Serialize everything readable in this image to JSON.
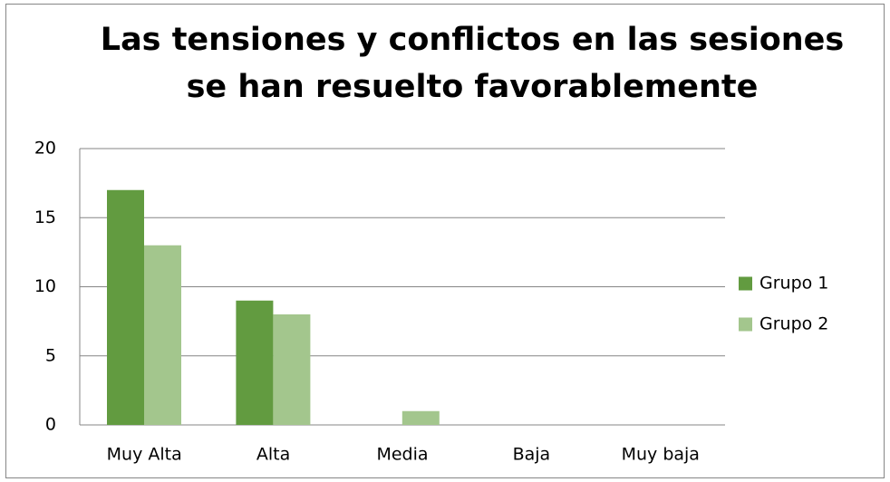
{
  "chart_data": {
    "type": "bar",
    "title": [
      "Las tensiones y conflictos en las sesiones",
      "se han resuelto favorablemente"
    ],
    "categories": [
      "Muy Alta",
      "Alta",
      "Media",
      "Baja",
      "Muy baja"
    ],
    "series": [
      {
        "name": "Grupo 1",
        "color": "#629b40",
        "values": [
          17,
          9,
          0,
          0,
          0
        ]
      },
      {
        "name": "Grupo 2",
        "color": "#a3c68d",
        "values": [
          13,
          8,
          1,
          0,
          0
        ]
      }
    ],
    "ylim": [
      0,
      20
    ],
    "yticks": [
      0,
      5,
      10,
      15,
      20
    ],
    "grid": true,
    "legend": "right"
  }
}
